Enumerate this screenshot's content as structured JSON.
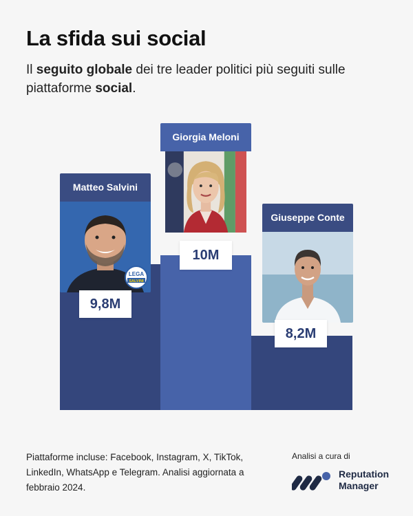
{
  "header": {
    "title": "La sfida sui social",
    "subtitle_parts": [
      "Il ",
      "seguito globale",
      " dei tre leader politici più seguiti sulle piattaforme ",
      "social",
      "."
    ]
  },
  "chart_data": {
    "type": "bar",
    "title": "La sfida sui social",
    "categories": [
      "Matteo Salvini",
      "Giorgia Meloni",
      "Giuseppe Conte"
    ],
    "values": [
      9.8,
      10,
      8.2
    ],
    "value_labels": [
      "9,8M",
      "10M",
      "8,2M"
    ],
    "unit": "M followers",
    "ylim": [
      0,
      10
    ],
    "grid": false,
    "legend": "none",
    "badge_text": [
      "LEGA",
      "SALVINI"
    ]
  },
  "colors": {
    "background": "#f6f6f6",
    "bars": [
      "#34467c",
      "#4763a9",
      "#34467c"
    ],
    "name_headers": [
      "#3a4c82",
      "#4763a9",
      "#3a4c82"
    ],
    "label_text": "#2a3d73"
  },
  "footer": {
    "note": "Piattaforme incluse: Facebook, Instagram, X, TikTok, LinkedIn, WhatsApp e Telegram. Analisi aggiornata a febbraio 2024.",
    "credit_label": "Analisi a cura di",
    "logo_line1": "Reputation",
    "logo_line2": "Manager",
    "logo_icon": "reputation-manager-logo-icon"
  }
}
